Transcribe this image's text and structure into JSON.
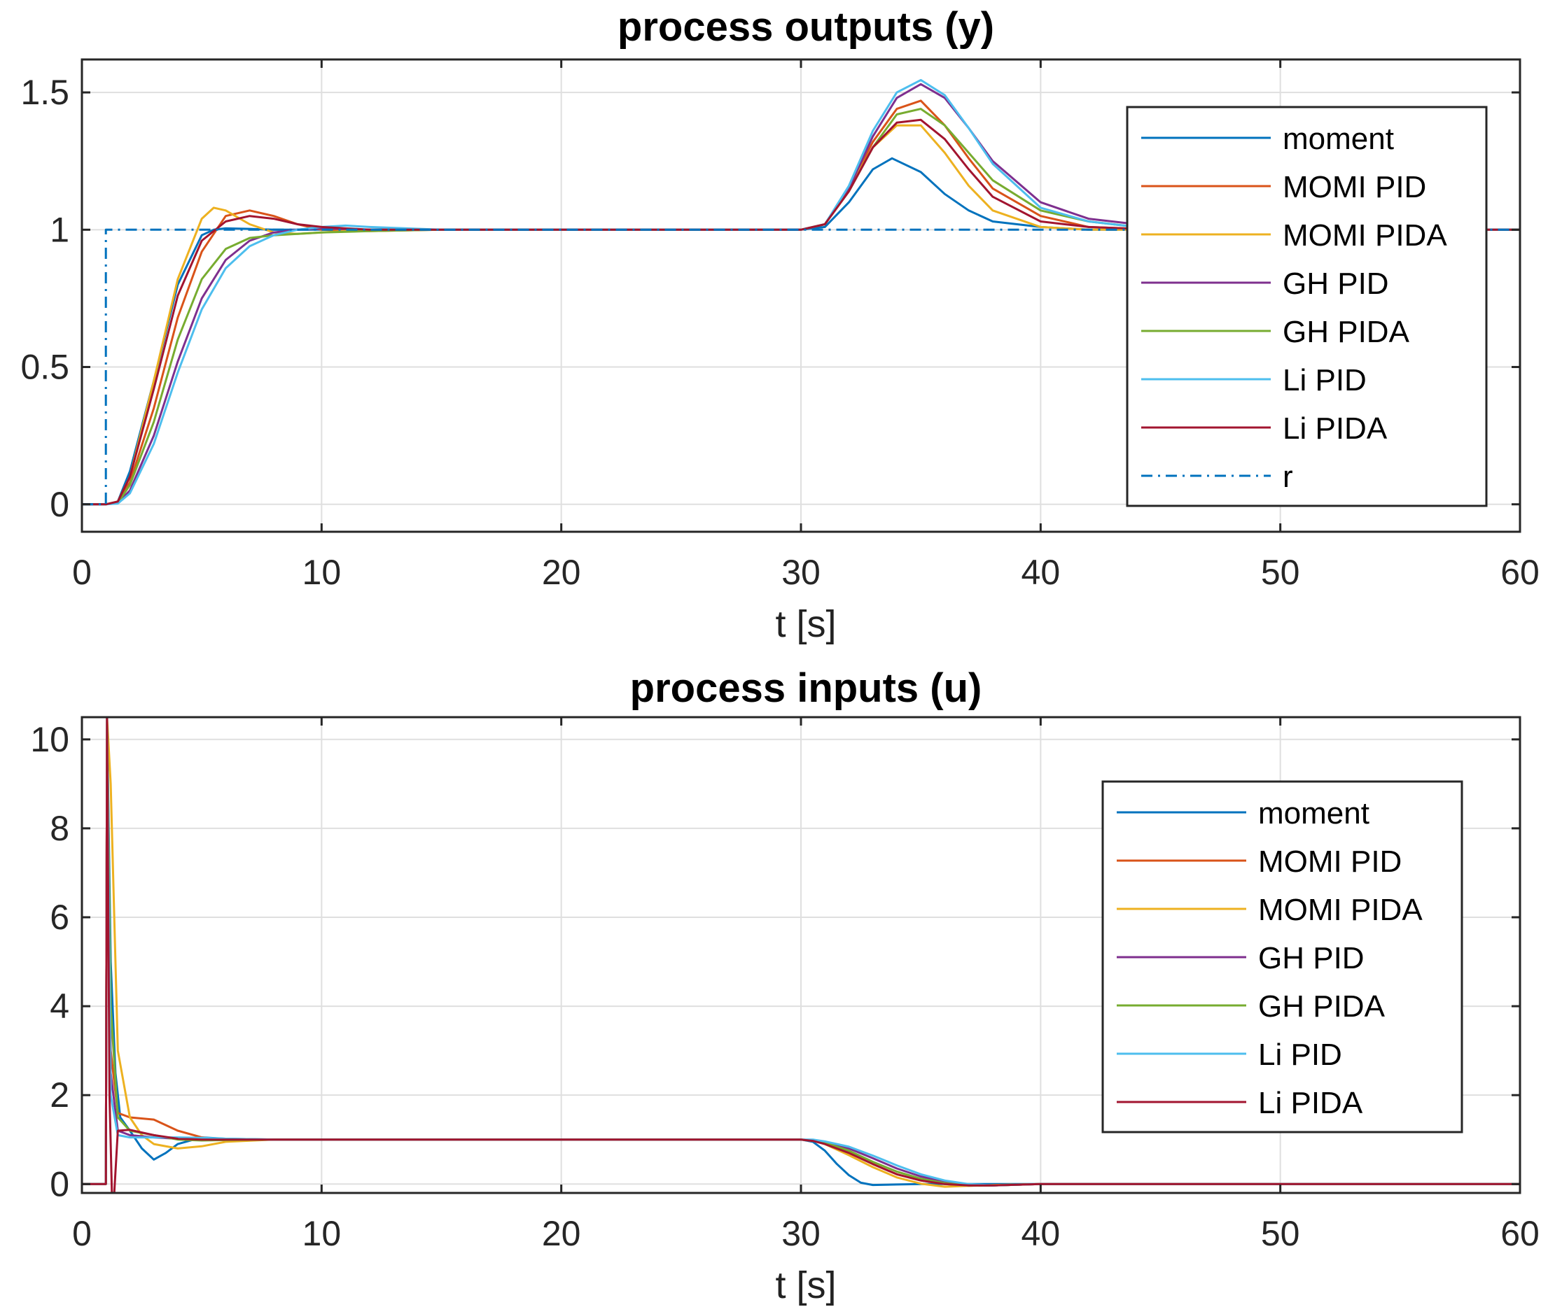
{
  "chart_data": [
    {
      "type": "line",
      "title": "process outputs (y)",
      "xlabel": "t [s]",
      "ylabel": "",
      "xlim": [
        0,
        60
      ],
      "ylim": [
        -0.1,
        1.62
      ],
      "xticks": [
        0,
        10,
        20,
        30,
        40,
        50,
        60
      ],
      "xtick_labels": [
        "0",
        "10",
        "20",
        "30",
        "40",
        "50",
        "60"
      ],
      "yticks": [
        0,
        0.5,
        1,
        1.5
      ],
      "ytick_labels": [
        "0",
        "0.5",
        "1",
        "1.5"
      ],
      "grid": true,
      "legend_position": "top-right",
      "series": [
        {
          "name": "moment",
          "color": "#0072BD",
          "dash": "solid",
          "x": [
            0,
            1,
            1.5,
            2,
            3,
            4,
            5,
            5.5,
            6,
            7,
            8,
            10,
            15,
            20,
            25,
            30,
            31,
            32,
            33,
            33.8,
            35,
            36,
            37,
            38,
            40,
            42,
            45,
            50,
            60
          ],
          "y": [
            0,
            0,
            0.01,
            0.12,
            0.45,
            0.8,
            0.98,
            1.0,
            1.005,
            1.003,
            1.0,
            1.0,
            1.0,
            1.0,
            1.0,
            1.0,
            1.01,
            1.1,
            1.22,
            1.26,
            1.21,
            1.13,
            1.07,
            1.03,
            1.01,
            1.0,
            1.0,
            1.0,
            1.0
          ]
        },
        {
          "name": "MOMI PID",
          "color": "#D95319",
          "dash": "solid",
          "x": [
            0,
            1,
            1.5,
            2,
            3,
            4,
            5,
            6,
            7,
            8,
            9,
            10,
            12,
            15,
            20,
            30,
            31,
            32,
            33,
            34,
            35,
            36,
            37,
            38,
            40,
            42,
            45,
            50,
            60
          ],
          "y": [
            0,
            0,
            0.01,
            0.08,
            0.35,
            0.68,
            0.92,
            1.05,
            1.07,
            1.05,
            1.02,
            1.0,
            0.995,
            1.0,
            1.0,
            1.0,
            1.02,
            1.15,
            1.32,
            1.44,
            1.47,
            1.38,
            1.26,
            1.15,
            1.05,
            1.01,
            1.0,
            1.0,
            1.0
          ]
        },
        {
          "name": "MOMI PIDA",
          "color": "#EDB120",
          "dash": "solid",
          "x": [
            0,
            1,
            1.5,
            2,
            3,
            4,
            5,
            5.5,
            6,
            7,
            8,
            9,
            10,
            12,
            15,
            20,
            30,
            31,
            32,
            33,
            34,
            35,
            36,
            37,
            38,
            40,
            42,
            45,
            50,
            60
          ],
          "y": [
            0,
            0,
            0.01,
            0.1,
            0.45,
            0.82,
            1.04,
            1.08,
            1.07,
            1.02,
            0.99,
            0.985,
            0.99,
            1.0,
            1.0,
            1.0,
            1.0,
            1.02,
            1.15,
            1.3,
            1.38,
            1.38,
            1.28,
            1.16,
            1.07,
            1.01,
            1.0,
            1.0,
            1.0,
            1.0
          ]
        },
        {
          "name": "GH PID",
          "color": "#7E2F8E",
          "dash": "solid",
          "x": [
            0,
            1,
            1.5,
            2,
            3,
            4,
            5,
            6,
            7,
            8,
            9,
            10,
            12,
            15,
            20,
            30,
            31,
            32,
            33,
            34,
            35,
            36,
            37,
            38,
            40,
            42,
            44,
            46,
            50,
            60
          ],
          "y": [
            0,
            0,
            0.005,
            0.05,
            0.25,
            0.52,
            0.75,
            0.89,
            0.96,
            0.99,
            1.0,
            1.005,
            1.0,
            1.0,
            1.0,
            1.0,
            1.02,
            1.15,
            1.34,
            1.48,
            1.53,
            1.48,
            1.37,
            1.25,
            1.1,
            1.04,
            1.02,
            1.01,
            1.0,
            1.0
          ]
        },
        {
          "name": "GH PIDA",
          "color": "#77AC30",
          "dash": "solid",
          "x": [
            0,
            1,
            1.5,
            2,
            3,
            4,
            5,
            6,
            7,
            8,
            10,
            12,
            15,
            20,
            30,
            31,
            32,
            33,
            34,
            35,
            36,
            37,
            38,
            40,
            42,
            44,
            46,
            50,
            60
          ],
          "y": [
            0,
            0,
            0.005,
            0.07,
            0.3,
            0.6,
            0.82,
            0.93,
            0.97,
            0.98,
            0.99,
            0.995,
            1.0,
            1.0,
            1.0,
            1.02,
            1.14,
            1.3,
            1.42,
            1.44,
            1.38,
            1.28,
            1.18,
            1.07,
            1.03,
            1.01,
            1.0,
            1.0,
            1.0
          ]
        },
        {
          "name": "Li PID",
          "color": "#4DBEEE",
          "dash": "solid",
          "x": [
            0,
            1,
            1.5,
            2,
            3,
            4,
            5,
            6,
            7,
            8,
            9,
            10,
            11,
            12,
            15,
            20,
            30,
            31,
            32,
            33,
            34,
            35,
            36,
            37,
            38,
            40,
            42,
            44,
            46,
            50,
            60
          ],
          "y": [
            0,
            0,
            0.003,
            0.04,
            0.22,
            0.48,
            0.71,
            0.86,
            0.94,
            0.98,
            1.0,
            1.01,
            1.015,
            1.01,
            1.0,
            1.0,
            1.0,
            1.02,
            1.16,
            1.36,
            1.5,
            1.545,
            1.49,
            1.37,
            1.24,
            1.08,
            1.03,
            1.01,
            1.0,
            1.0,
            1.0
          ]
        },
        {
          "name": "Li PIDA",
          "color": "#A2142F",
          "dash": "solid",
          "x": [
            0,
            1,
            1.5,
            2,
            3,
            4,
            5,
            6,
            7,
            8,
            9,
            10,
            12,
            15,
            20,
            30,
            31,
            32,
            33,
            34,
            35,
            36,
            37,
            38,
            40,
            42,
            45,
            50,
            60
          ],
          "y": [
            0,
            0,
            0.01,
            0.1,
            0.42,
            0.76,
            0.96,
            1.03,
            1.05,
            1.04,
            1.02,
            1.01,
            1.0,
            1.0,
            1.0,
            1.0,
            1.02,
            1.14,
            1.3,
            1.39,
            1.4,
            1.33,
            1.22,
            1.12,
            1.03,
            1.01,
            1.0,
            1.0,
            1.0
          ]
        },
        {
          "name": "r",
          "color": "#0072BD",
          "dash": "dashdot",
          "x": [
            0,
            1,
            1,
            60
          ],
          "y": [
            0,
            0,
            1,
            1
          ]
        }
      ]
    },
    {
      "type": "line",
      "title": "process inputs (u)",
      "xlabel": "t [s]",
      "ylabel": "",
      "xlim": [
        0,
        60
      ],
      "ylim": [
        -0.2,
        10.5
      ],
      "xticks": [
        0,
        10,
        20,
        30,
        40,
        50,
        60
      ],
      "xtick_labels": [
        "0",
        "10",
        "20",
        "30",
        "40",
        "50",
        "60"
      ],
      "yticks": [
        0,
        2,
        4,
        6,
        8,
        10
      ],
      "ytick_labels": [
        "0",
        "2",
        "4",
        "6",
        "8",
        "10"
      ],
      "grid": true,
      "legend_position": "top-right",
      "series": [
        {
          "name": "moment",
          "color": "#0072BD",
          "dash": "solid",
          "x": [
            0,
            1,
            1.05,
            1.2,
            1.4,
            1.6,
            2,
            2.5,
            3,
            3.5,
            4,
            5,
            6,
            8,
            10,
            20,
            30,
            30.5,
            31,
            31.5,
            32,
            32.5,
            33,
            34,
            35,
            36,
            38,
            40,
            45,
            60
          ],
          "y": [
            0,
            0,
            10.5,
            5,
            2.5,
            1.5,
            1.2,
            0.8,
            0.55,
            0.7,
            0.9,
            1.05,
            1.02,
            1.0,
            1.0,
            1.0,
            1.0,
            0.95,
            0.75,
            0.45,
            0.2,
            0.03,
            -0.02,
            -0.01,
            0,
            0,
            0,
            0,
            0,
            0
          ]
        },
        {
          "name": "MOMI PID",
          "color": "#D95319",
          "dash": "solid",
          "x": [
            0,
            1,
            1.05,
            1.2,
            1.5,
            2,
            3,
            4,
            5,
            6,
            8,
            10,
            20,
            30,
            30.5,
            31,
            32,
            33,
            34,
            35,
            36,
            37,
            38,
            40,
            45,
            60
          ],
          "y": [
            0,
            0,
            10.5,
            3,
            1.6,
            1.5,
            1.45,
            1.2,
            1.05,
            0.98,
            1.0,
            1.0,
            1.0,
            1.0,
            0.98,
            0.9,
            0.7,
            0.45,
            0.22,
            0.08,
            0,
            -0.04,
            -0.03,
            0,
            0,
            0
          ]
        },
        {
          "name": "MOMI PIDA",
          "color": "#EDB120",
          "dash": "solid",
          "x": [
            0,
            1,
            1.05,
            1.2,
            1.5,
            2,
            2.5,
            3,
            4,
            5,
            6,
            8,
            10,
            20,
            30,
            30.5,
            31,
            32,
            33,
            34,
            35,
            36,
            37,
            38,
            40,
            45,
            60
          ],
          "y": [
            0,
            0,
            10.5,
            9,
            3,
            1.5,
            1.1,
            0.9,
            0.8,
            0.85,
            0.95,
            1.0,
            1.0,
            1.0,
            1.0,
            0.97,
            0.9,
            0.65,
            0.38,
            0.15,
            0.01,
            -0.06,
            -0.04,
            -0.02,
            0,
            0,
            0
          ]
        },
        {
          "name": "GH PID",
          "color": "#7E2F8E",
          "dash": "solid",
          "x": [
            0,
            1,
            1.05,
            1.2,
            1.5,
            2,
            3,
            4,
            5,
            6,
            8,
            10,
            20,
            30,
            30.5,
            31,
            32,
            33,
            34,
            35,
            36,
            37,
            38,
            40,
            45,
            60
          ],
          "y": [
            0,
            0,
            10.5,
            2.5,
            1.2,
            1.1,
            1.05,
            1.02,
            1.0,
            1.0,
            1.0,
            1.0,
            1.0,
            1.0,
            0.99,
            0.95,
            0.8,
            0.58,
            0.35,
            0.17,
            0.05,
            -0.02,
            -0.03,
            0,
            0,
            0
          ]
        },
        {
          "name": "GH PIDA",
          "color": "#77AC30",
          "dash": "solid",
          "x": [
            0,
            1,
            1.05,
            1.2,
            1.5,
            2,
            3,
            4,
            5,
            6,
            8,
            10,
            20,
            30,
            30.5,
            31,
            32,
            33,
            34,
            35,
            36,
            37,
            38,
            40,
            45,
            60
          ],
          "y": [
            0,
            0,
            10.5,
            4,
            1.5,
            1.2,
            1.1,
            1.0,
            0.98,
            0.99,
            1.0,
            1.0,
            1.0,
            1.0,
            0.98,
            0.93,
            0.75,
            0.5,
            0.28,
            0.12,
            0.02,
            -0.03,
            -0.03,
            0,
            0,
            0
          ]
        },
        {
          "name": "Li PID",
          "color": "#4DBEEE",
          "dash": "solid",
          "x": [
            0,
            1,
            1.05,
            1.2,
            1.5,
            2,
            3,
            4,
            5,
            6,
            8,
            10,
            20,
            30,
            30.5,
            31,
            32,
            33,
            34,
            35,
            36,
            37,
            38,
            40,
            45,
            60
          ],
          "y": [
            0,
            0,
            10.5,
            2,
            1.1,
            1.05,
            1.05,
            1.05,
            1.04,
            1.02,
            1.0,
            1.0,
            1.0,
            1.0,
            1.0,
            0.96,
            0.84,
            0.64,
            0.42,
            0.22,
            0.08,
            0,
            -0.03,
            0,
            0,
            0
          ]
        },
        {
          "name": "Li PIDA",
          "color": "#A2142F",
          "dash": "solid",
          "x": [
            0,
            1,
            1.05,
            1.15,
            1.25,
            1.35,
            1.5,
            2,
            3,
            4,
            5,
            6,
            8,
            10,
            20,
            30,
            30.5,
            31,
            32,
            33,
            34,
            35,
            36,
            37,
            38,
            40,
            45,
            60
          ],
          "y": [
            0,
            0,
            10.5,
            2,
            -0.2,
            -0.2,
            1.2,
            1.22,
            1.1,
            1.02,
            1.0,
            1.0,
            1.0,
            1.0,
            1.0,
            1.0,
            0.97,
            0.9,
            0.7,
            0.45,
            0.22,
            0.08,
            0,
            -0.03,
            -0.03,
            0,
            0,
            0
          ]
        }
      ]
    }
  ]
}
